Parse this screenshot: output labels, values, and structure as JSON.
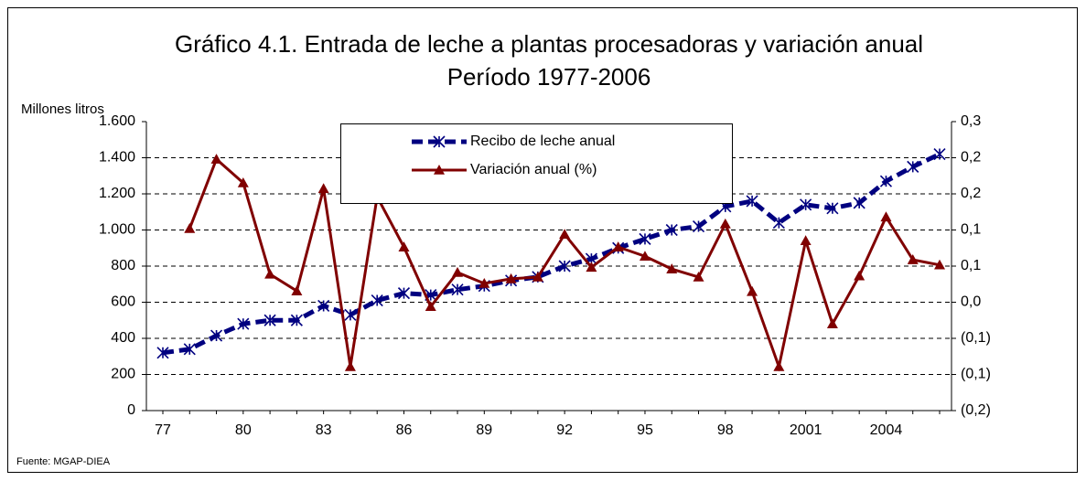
{
  "chart_data": {
    "type": "line",
    "title": "Gráfico 4.1. Entrada de leche a plantas procesadoras y variación anual",
    "subtitle": "Período 1977-2006",
    "y_label": "Millones litros",
    "source": "Fuente: MGAP-DIEA",
    "categories": [
      "77",
      null,
      null,
      "80",
      null,
      null,
      "83",
      null,
      null,
      "86",
      null,
      null,
      "89",
      null,
      null,
      "92",
      null,
      null,
      "95",
      null,
      null,
      "98",
      null,
      null,
      "2001",
      null,
      null,
      "2004",
      null,
      null
    ],
    "series": [
      {
        "name": "Recibo de leche anual",
        "color": "#000080",
        "values": [
          320,
          340,
          415,
          480,
          500,
          500,
          580,
          530,
          610,
          650,
          640,
          670,
          690,
          720,
          740,
          800,
          840,
          900,
          950,
          1000,
          1020,
          1130,
          1160,
          1040,
          1140,
          1120,
          1150,
          1270,
          1350,
          1420
        ]
      },
      {
        "name": "Variación anual (%)",
        "color": "#800000",
        "axis": "y2",
        "values": [
          null,
          0.115,
          0.235,
          0.194,
          0.036,
          0.007,
          0.184,
          -0.124,
          0.17,
          0.083,
          -0.02,
          0.039,
          0.02,
          0.028,
          0.031,
          0.105,
          0.048,
          0.083,
          0.067,
          0.045,
          0.031,
          0.123,
          0.006,
          -0.124,
          0.094,
          -0.05,
          0.033,
          0.135,
          0.061,
          0.052
        ]
      }
    ],
    "ylim": [
      0,
      1600
    ],
    "yticks": [
      0,
      200,
      400,
      600,
      800,
      {
        "value": 1000,
        "label": "1.000"
      },
      {
        "value": 1200,
        "label": "1.200"
      },
      {
        "value": 1400,
        "label": "1.400"
      },
      {
        "value": 1600,
        "label": "1.600"
      }
    ],
    "y2lim": [
      -0.2,
      0.3
    ],
    "y2ticks": [
      {
        "value": -0.2,
        "label": "(0,2)"
      },
      {
        "value": -0.1375,
        "label": "(0,1)"
      },
      {
        "value": -0.075,
        "label": "(0,1)"
      },
      {
        "value": -0.0125,
        "label": "0,0"
      },
      {
        "value": 0.05,
        "label": "0,1"
      },
      {
        "value": 0.1125,
        "label": "0,1"
      },
      {
        "value": 0.175,
        "label": "0,2"
      },
      {
        "value": 0.2375,
        "label": "0,2"
      },
      {
        "value": 0.3,
        "label": "0,3"
      }
    ],
    "grid": true
  }
}
